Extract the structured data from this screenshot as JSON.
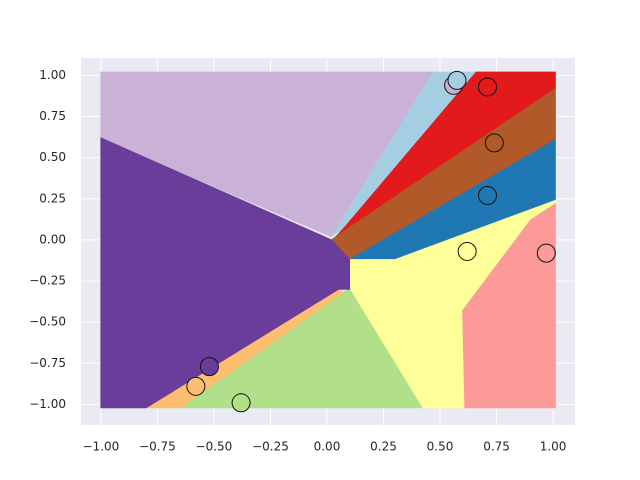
{
  "chart_data": {
    "type": "scatter",
    "grid": true,
    "xlim": [
      -1.088,
      1.097
    ],
    "ylim": [
      -1.125,
      1.106
    ],
    "xticks": [
      {
        "value": -1,
        "label": "−1.00"
      },
      {
        "value": -0.75,
        "label": "−0.75"
      },
      {
        "value": -0.5,
        "label": "−0.50"
      },
      {
        "value": -0.25,
        "label": "−0.25"
      },
      {
        "value": 0,
        "label": "0.00"
      },
      {
        "value": 0.25,
        "label": "0.25"
      },
      {
        "value": 0.5,
        "label": "0.50"
      },
      {
        "value": 0.75,
        "label": "0.75"
      },
      {
        "value": 1,
        "label": "1.00"
      }
    ],
    "yticks": [
      {
        "value": -1,
        "label": "−1.00"
      },
      {
        "value": -0.75,
        "label": "−0.75"
      },
      {
        "value": -0.5,
        "label": "−0.50"
      },
      {
        "value": -0.25,
        "label": "−0.25"
      },
      {
        "value": 0,
        "label": "0.00"
      },
      {
        "value": 0.25,
        "label": "0.25"
      },
      {
        "value": 0.5,
        "label": "0.50"
      },
      {
        "value": 0.75,
        "label": "0.75"
      },
      {
        "value": 1,
        "label": "1.00"
      }
    ],
    "regions": [
      {
        "color": "#cab2d6",
        "x": [
          -1,
          0.47,
          0.02,
          -1
        ],
        "y": [
          1.02,
          1.02,
          0.02,
          0.62
        ]
      },
      {
        "color": "#a6cee3",
        "x": [
          0.47,
          0.66,
          0.08,
          0.02
        ],
        "y": [
          1.02,
          1.02,
          0.08,
          0.02
        ]
      },
      {
        "color": "#e31a1c",
        "x": [
          0.66,
          1.01,
          1.01,
          0.04,
          0.08
        ],
        "y": [
          1.02,
          1.02,
          0.92,
          0.02,
          0.08
        ]
      },
      {
        "color": "#b15928",
        "x": [
          1.01,
          1.01,
          0.1,
          0.02,
          0.04
        ],
        "y": [
          0.92,
          0.61,
          -0.12,
          0.0,
          0.02
        ]
      },
      {
        "color": "#1f78b4",
        "x": [
          1.01,
          1.01,
          0.3,
          0.1
        ],
        "y": [
          0.61,
          0.24,
          -0.12,
          -0.12
        ]
      },
      {
        "color": "#ffff99",
        "x": [
          0.1,
          0.3,
          1.01,
          1.01,
          0.9,
          0.6,
          0.61,
          0.42,
          0.1
        ],
        "y": [
          -0.12,
          -0.12,
          0.24,
          0.22,
          0.12,
          -0.43,
          -1.02,
          -1.02,
          -0.3
        ]
      },
      {
        "color": "#fb9a99",
        "x": [
          1.01,
          1.01,
          0.61,
          0.6,
          0.9
        ],
        "y": [
          0.22,
          -1.02,
          -1.02,
          -0.43,
          0.12
        ]
      },
      {
        "color": "#b2df8a",
        "x": [
          0.1,
          0.42,
          -0.65,
          0.07
        ],
        "y": [
          -0.3,
          -1.02,
          -1.02,
          -0.32
        ]
      },
      {
        "color": "#fdbf6f",
        "x": [
          0.07,
          -0.65,
          -0.8,
          0.05
        ],
        "y": [
          -0.32,
          -1.02,
          -1.02,
          -0.3
        ]
      },
      {
        "color": "#6a3d9a",
        "x": [
          -1,
          0.02,
          0.1,
          0.1,
          0.05,
          -0.8,
          -1
        ],
        "y": [
          0.62,
          0.0,
          -0.12,
          -0.3,
          -0.3,
          -1.02,
          -1.02
        ]
      }
    ],
    "series": [
      {
        "color": "#cab2d6",
        "x": [
          0.56
        ],
        "y": [
          0.94
        ]
      },
      {
        "color": "#a6cee3",
        "x": [
          0.575
        ],
        "y": [
          0.97
        ]
      },
      {
        "color": "#e31a1c",
        "x": [
          0.71
        ],
        "y": [
          0.93
        ]
      },
      {
        "color": "#b15928",
        "x": [
          0.74
        ],
        "y": [
          0.59
        ]
      },
      {
        "color": "#1f78b4",
        "x": [
          0.71
        ],
        "y": [
          0.27
        ]
      },
      {
        "color": "#ffff99",
        "x": [
          0.62
        ],
        "y": [
          -0.07
        ]
      },
      {
        "color": "#fb9a99",
        "x": [
          0.97
        ],
        "y": [
          -0.08
        ]
      },
      {
        "color": "#6a3d9a",
        "x": [
          -0.52
        ],
        "y": [
          -0.77
        ]
      },
      {
        "color": "#fdbf6f",
        "x": [
          -0.58
        ],
        "y": [
          -0.89
        ]
      },
      {
        "color": "#b2df8a",
        "x": [
          -0.38
        ],
        "y": [
          -0.99
        ]
      }
    ]
  }
}
